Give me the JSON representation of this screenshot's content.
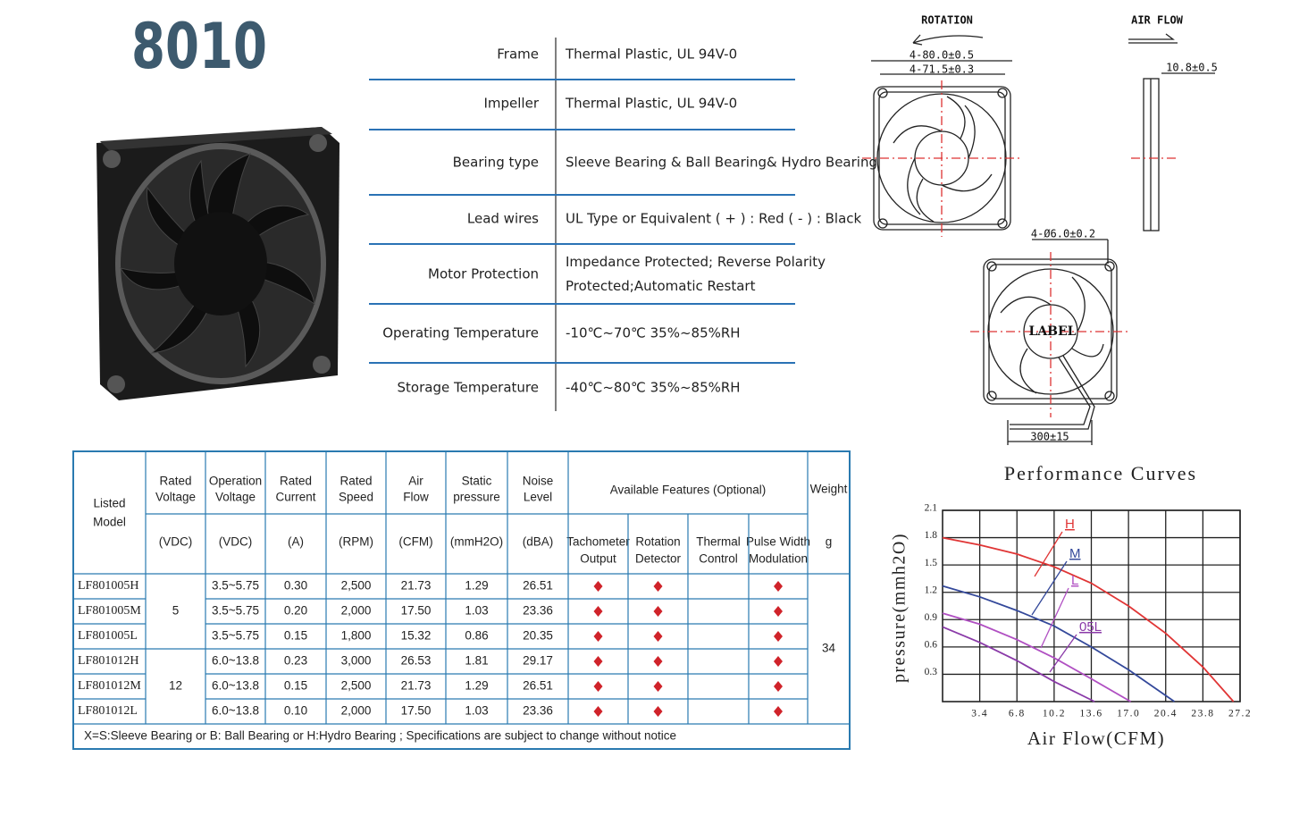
{
  "title": "8010",
  "specs": [
    {
      "label": "Frame",
      "value": [
        "Thermal Plastic, UL 94V-0"
      ]
    },
    {
      "label": "Impeller",
      "value": [
        "Thermal Plastic, UL 94V-0"
      ]
    },
    {
      "label": "Bearing type",
      "value": [
        "Sleeve Bearing &  Ball Bearing& Hydro Bearing"
      ]
    },
    {
      "label": "Lead wires",
      "value": [
        "UL Type or Equivalent ( + ) : Red ( - ) : Black"
      ]
    },
    {
      "label": "Motor Protection",
      "value": [
        "Impedance Protected; Reverse Polarity",
        "Protected;Automatic Restart"
      ]
    },
    {
      "label": "Operating Temperature",
      "value": [
        "-10℃~70℃  35%~85%RH"
      ]
    },
    {
      "label": "Storage Temperature",
      "value": [
        "-40℃~80℃  35%~85%RH"
      ]
    }
  ],
  "drawings": {
    "rotation": "ROTATION",
    "air_flow": "AIR FLOW",
    "outer_pitch": "4-80.0±0.5",
    "inner_pitch": "4-71.5±0.3",
    "thickness": "10.8±0.5",
    "hole": "4-Ø6.0±0.2",
    "label": "LABEL",
    "lead_length": "300±15"
  },
  "table": {
    "model_header": [
      "Listed",
      "Model"
    ],
    "columns": [
      {
        "name": [
          "Rated",
          "Voltage"
        ],
        "unit": "(VDC)"
      },
      {
        "name": [
          "Operation",
          "Voltage"
        ],
        "unit": "(VDC)"
      },
      {
        "name": [
          "Rated",
          "Current"
        ],
        "unit": "(A)"
      },
      {
        "name": [
          "Rated",
          "Speed"
        ],
        "unit": "(RPM)"
      },
      {
        "name": [
          "Air",
          "Flow"
        ],
        "unit": "(CFM)"
      },
      {
        "name": [
          "Static",
          "pressure"
        ],
        "unit": "(mmH2O)"
      },
      {
        "name": [
          "Noise",
          "Level"
        ],
        "unit": "(dBA)"
      }
    ],
    "features": {
      "title": "Available Features (Optional)",
      "items": [
        [
          "Tachometer",
          "Output"
        ],
        [
          "Rotation",
          "Detector"
        ],
        [
          "Thermal",
          "Control"
        ],
        [
          "Pulse Width",
          "Modulation"
        ]
      ]
    },
    "weight": {
      "name": "Weight",
      "unit": "g",
      "value": "34"
    },
    "groups": [
      {
        "voltage": "5",
        "rows": [
          {
            "model": "LF801005H",
            "cells": [
              "3.5~5.75",
              "0.30",
              "2,500",
              "21.73",
              "1.29",
              "26.51"
            ],
            "features": [
              true,
              true,
              false,
              true
            ]
          },
          {
            "model": "LF801005M",
            "cells": [
              "3.5~5.75",
              "0.20",
              "2,000",
              "17.50",
              "1.03",
              "23.36"
            ],
            "features": [
              true,
              true,
              false,
              true
            ]
          },
          {
            "model": "LF801005L",
            "cells": [
              "3.5~5.75",
              "0.15",
              "1,800",
              "15.32",
              "0.86",
              "20.35"
            ],
            "features": [
              true,
              true,
              false,
              true
            ]
          }
        ]
      },
      {
        "voltage": "12",
        "rows": [
          {
            "model": "LF801012H",
            "cells": [
              "6.0~13.8",
              "0.23",
              "3,000",
              "26.53",
              "1.81",
              "29.17"
            ],
            "features": [
              true,
              true,
              false,
              true
            ]
          },
          {
            "model": "LF801012M",
            "cells": [
              "6.0~13.8",
              "0.15",
              "2,500",
              "21.73",
              "1.29",
              "26.51"
            ],
            "features": [
              true,
              true,
              false,
              true
            ]
          },
          {
            "model": "LF801012L",
            "cells": [
              "6.0~13.8",
              "0.10",
              "2,000",
              "17.50",
              "1.03",
              "23.36"
            ],
            "features": [
              true,
              true,
              false,
              true
            ]
          }
        ]
      }
    ],
    "footnote": "X=S:Sleeve Bearing or B: Ball Bearing or H:Hydro Bearing ; Specifications are subject to change without notice"
  },
  "chart_data": {
    "type": "line",
    "title": "Performance Curves",
    "x_label": "Air Flow(CFM)",
    "y_label": "pressure(mmh2O)",
    "xlim": [
      0,
      27.2
    ],
    "ylim": [
      0,
      2.1
    ],
    "xticks": [
      3.4,
      6.8,
      10.2,
      13.6,
      {
        "value": 17,
        "label": "17.0"
      },
      20.4,
      23.8,
      27.2
    ],
    "yticks": [
      0.3,
      0.6,
      0.9,
      1.2,
      1.5,
      1.8,
      2.1
    ],
    "grid": true,
    "series": [
      {
        "name": "H",
        "color": "#e03535",
        "x": [
          0,
          3.4,
          6.8,
          10.2,
          13.6,
          17,
          20.4,
          23.8,
          26.6
        ],
        "values": [
          1.8,
          1.72,
          1.62,
          1.48,
          1.3,
          1.05,
          0.75,
          0.38,
          0
        ]
      },
      {
        "name": "M",
        "color": "#33489a",
        "x": [
          0,
          3.4,
          6.8,
          10.2,
          13.6,
          17,
          21.2
        ],
        "values": [
          1.27,
          1.15,
          1.0,
          0.83,
          0.6,
          0.35,
          0
        ]
      },
      {
        "name": "L",
        "color": "#b04fc2",
        "x": [
          0,
          3.4,
          6.8,
          10.2,
          13.6,
          17.2
        ],
        "values": [
          0.97,
          0.85,
          0.68,
          0.48,
          0.25,
          0
        ]
      },
      {
        "name": "05L",
        "color": "#8a3aa8",
        "x": [
          0,
          3.4,
          6.8,
          10.2,
          13.9
        ],
        "values": [
          0.82,
          0.65,
          0.45,
          0.22,
          0
        ]
      }
    ]
  }
}
